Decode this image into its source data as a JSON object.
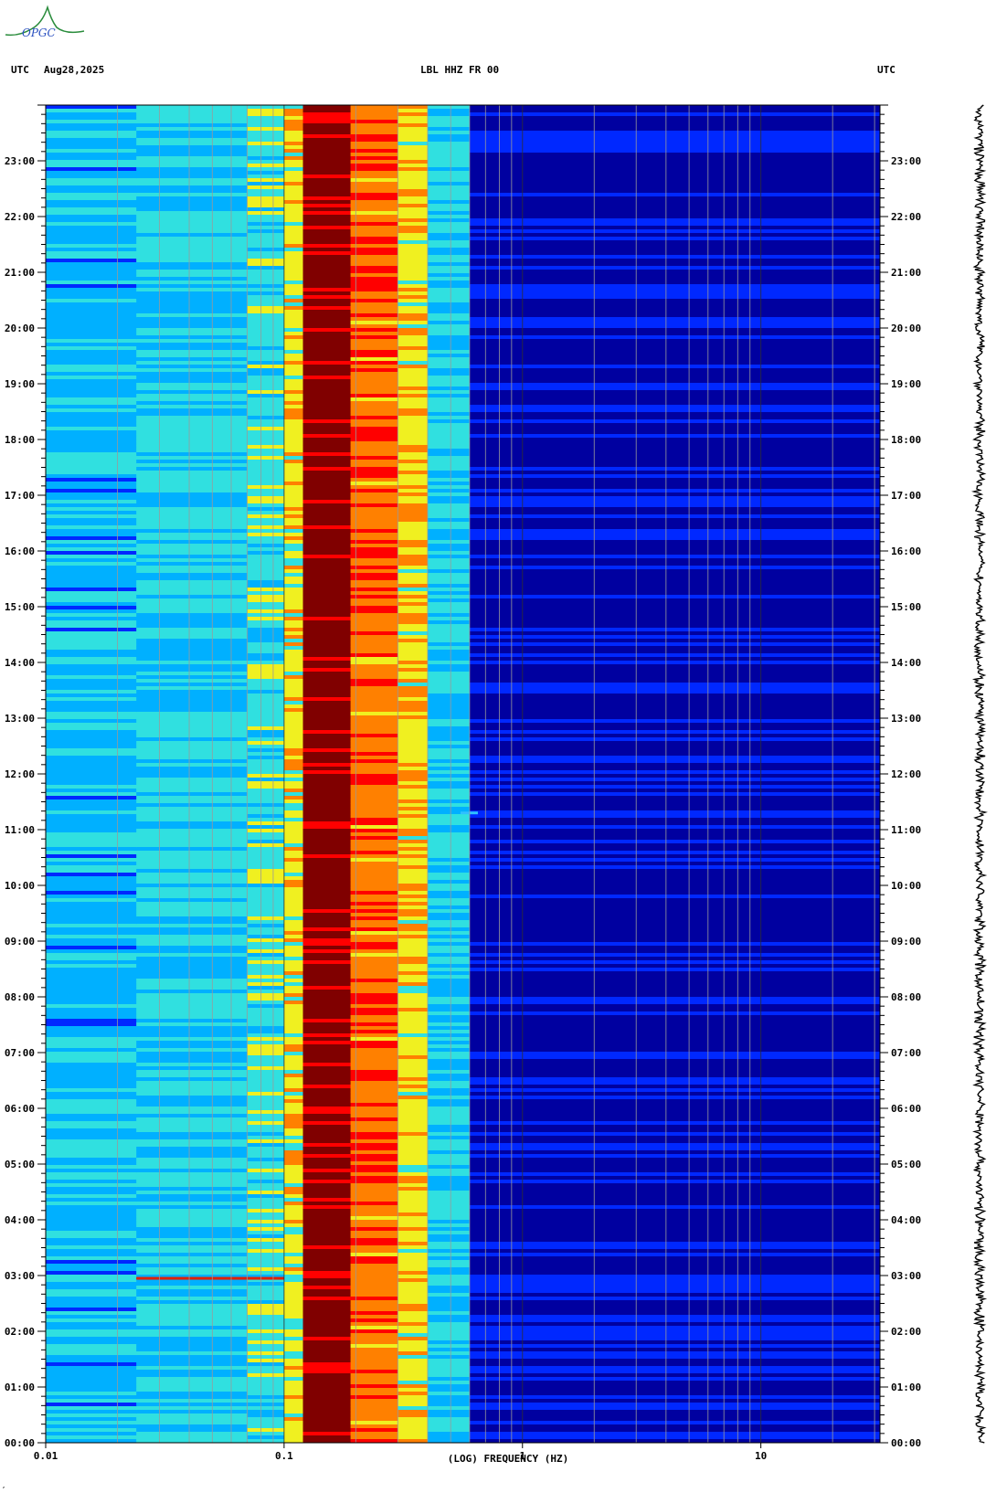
{
  "header": {
    "utc_left": "UTC",
    "date": "Aug28,2025",
    "station": "LBL HHZ FR 00",
    "utc_right": "UTC"
  },
  "logo": {
    "text": "OPGC",
    "color": "#2a8c3c"
  },
  "chart_data": {
    "type": "heatmap",
    "title": "LBL HHZ FR 00",
    "xlabel": "(LOG) FREQUENCY (HZ)",
    "x_scale": "log",
    "xlim": [
      0.01,
      31.6
    ],
    "x_ticks": [
      {
        "value": 0.01,
        "label": "0.01"
      },
      {
        "value": 0.1,
        "label": "0.1"
      },
      {
        "value": 1,
        "label": "1"
      },
      {
        "value": 10,
        "label": "10"
      }
    ],
    "y_ticks": [
      "00:00",
      "01:00",
      "02:00",
      "03:00",
      "04:00",
      "05:00",
      "06:00",
      "07:00",
      "08:00",
      "09:00",
      "10:00",
      "11:00",
      "12:00",
      "13:00",
      "14:00",
      "15:00",
      "16:00",
      "17:00",
      "18:00",
      "19:00",
      "20:00",
      "21:00",
      "22:00",
      "23:00"
    ],
    "ylim_hours": [
      0,
      24
    ],
    "grid": true,
    "colormap": [
      "#0000a0",
      "#0028ff",
      "#00b0ff",
      "#30e0e0",
      "#f0f020",
      "#ff8000",
      "#ff0000",
      "#800000"
    ],
    "spectral_bands": [
      {
        "f_min": 0.01,
        "f_max": 0.024,
        "level": 2.2
      },
      {
        "f_min": 0.024,
        "f_max": 0.07,
        "level": 2.6
      },
      {
        "f_min": 0.07,
        "f_max": 0.1,
        "level": 3.1
      },
      {
        "f_min": 0.1,
        "f_max": 0.12,
        "level": 4.0
      },
      {
        "f_min": 0.12,
        "f_max": 0.19,
        "level": 7.0
      },
      {
        "f_min": 0.19,
        "f_max": 0.3,
        "level": 5.2
      },
      {
        "f_min": 0.3,
        "f_max": 0.4,
        "level": 4.2
      },
      {
        "f_min": 0.4,
        "f_max": 0.6,
        "level": 2.6
      },
      {
        "f_min": 0.6,
        "f_max": 31.6,
        "level": 0.2
      }
    ],
    "events": [
      {
        "hour": 2.95,
        "f_min": 0.024,
        "f_max": 0.1,
        "label": ""
      },
      {
        "hour": 11.3,
        "f_min": 0.55,
        "f_max": 0.65,
        "label": ""
      }
    ]
  },
  "footer": {
    "corner_mark": ","
  }
}
